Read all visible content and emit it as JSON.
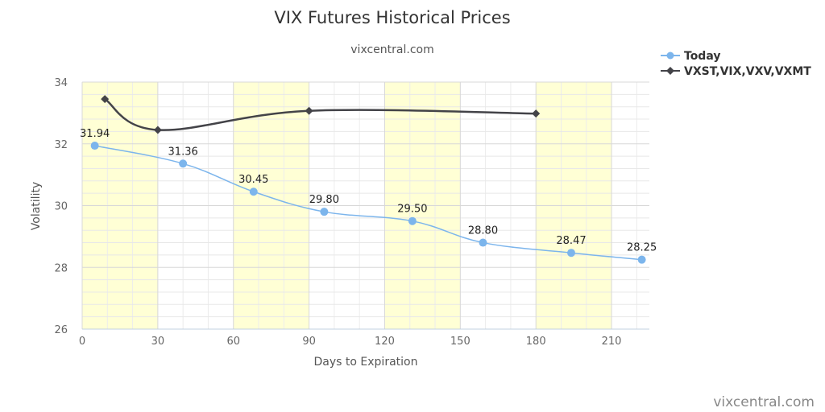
{
  "chart_data": {
    "type": "line",
    "title": "VIX Futures Historical Prices",
    "subtitle": "vixcentral.com",
    "xlabel": "Days to Expiration",
    "ylabel": "Volatility",
    "xlim": [
      0,
      225
    ],
    "ylim": [
      26,
      34
    ],
    "x_ticks": [
      0,
      30,
      60,
      90,
      120,
      150,
      180,
      210
    ],
    "y_ticks": [
      26,
      28,
      30,
      32,
      34
    ],
    "x_minor_step": 10,
    "y_minor_step": 0.4,
    "shaded_bands": [
      [
        0,
        30
      ],
      [
        60,
        90
      ],
      [
        120,
        150
      ],
      [
        180,
        210
      ]
    ],
    "band_color": "#ffffd5",
    "grid": true,
    "legend_position": "top-right",
    "series": [
      {
        "name": "Today",
        "color": "#7cb5ec",
        "marker": "circle",
        "x": [
          5,
          40,
          68,
          96,
          131,
          159,
          194,
          222
        ],
        "y": [
          31.94,
          31.36,
          30.45,
          29.8,
          29.5,
          28.8,
          28.47,
          28.25
        ],
        "labels": [
          "31.94",
          "31.36",
          "30.45",
          "29.80",
          "29.50",
          "28.80",
          "28.47",
          "28.25"
        ]
      },
      {
        "name": "VXST,VIX,VXV,VXMT",
        "color": "#434348",
        "marker": "diamond",
        "x": [
          9,
          30,
          90,
          180
        ],
        "y": [
          33.45,
          32.45,
          33.07,
          32.98
        ],
        "labels": []
      }
    ]
  },
  "credits": "vixcentral.com"
}
